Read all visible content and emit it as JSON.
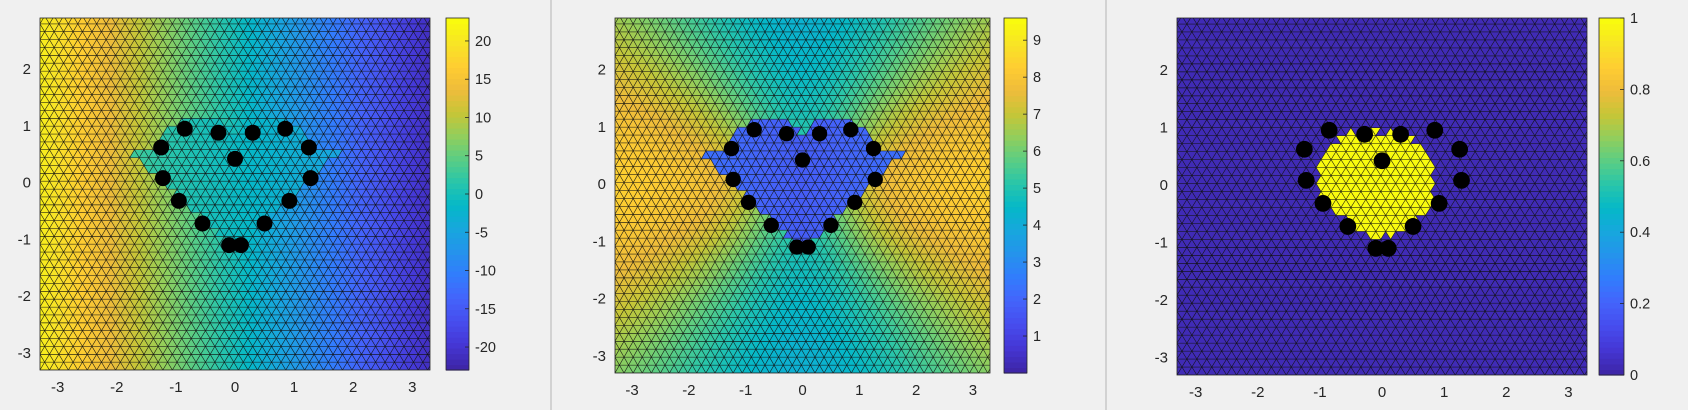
{
  "chart_data": [
    {
      "type": "heatmap",
      "xlim": [
        -3.3,
        3.3
      ],
      "ylim": [
        -3.3,
        2.9
      ],
      "xticks": [
        -3,
        -2,
        -1,
        0,
        1,
        2,
        3
      ],
      "yticks": [
        -3,
        -2,
        -1,
        0,
        1,
        2
      ],
      "colorbar": {
        "limits": [
          -23,
          23
        ],
        "ticks": [
          -20,
          -15,
          -10,
          -5,
          0,
          5,
          10,
          15,
          20
        ]
      },
      "colormap": "parula",
      "grid": false
    },
    {
      "type": "heatmap",
      "xlim": [
        -3.3,
        3.3
      ],
      "ylim": [
        -3.3,
        2.9
      ],
      "xticks": [
        -3,
        -2,
        -1,
        0,
        1,
        2,
        3
      ],
      "yticks": [
        -3,
        -2,
        -1,
        0,
        1,
        2
      ],
      "colorbar": {
        "limits": [
          0,
          9.6
        ],
        "ticks": [
          1,
          2,
          3,
          4,
          5,
          6,
          7,
          8,
          9
        ]
      },
      "colormap": "parula",
      "grid": false
    },
    {
      "type": "heatmap",
      "xlim": [
        -3.3,
        3.3
      ],
      "ylim": [
        -3.3,
        2.9
      ],
      "xticks": [
        -3,
        -2,
        -1,
        0,
        1,
        2,
        3
      ],
      "yticks": [
        -3,
        -2,
        -1,
        0,
        1,
        2
      ],
      "colorbar": {
        "limits": [
          0,
          1
        ],
        "ticks": [
          0,
          0.2,
          0.4,
          0.6,
          0.8,
          1
        ]
      },
      "colormap": "parula",
      "grid": false
    }
  ],
  "electrodes": [
    [
      -1.25,
      0.62
    ],
    [
      -1.22,
      0.08
    ],
    [
      -0.85,
      0.95
    ],
    [
      -0.95,
      -0.32
    ],
    [
      -0.55,
      -0.72
    ],
    [
      -0.28,
      0.88
    ],
    [
      -0.1,
      -1.1
    ],
    [
      0.1,
      -1.1
    ],
    [
      0.0,
      0.42
    ],
    [
      0.3,
      0.88
    ],
    [
      0.5,
      -0.72
    ],
    [
      0.85,
      0.95
    ],
    [
      0.92,
      -0.32
    ],
    [
      1.25,
      0.62
    ],
    [
      1.28,
      0.08
    ]
  ]
}
